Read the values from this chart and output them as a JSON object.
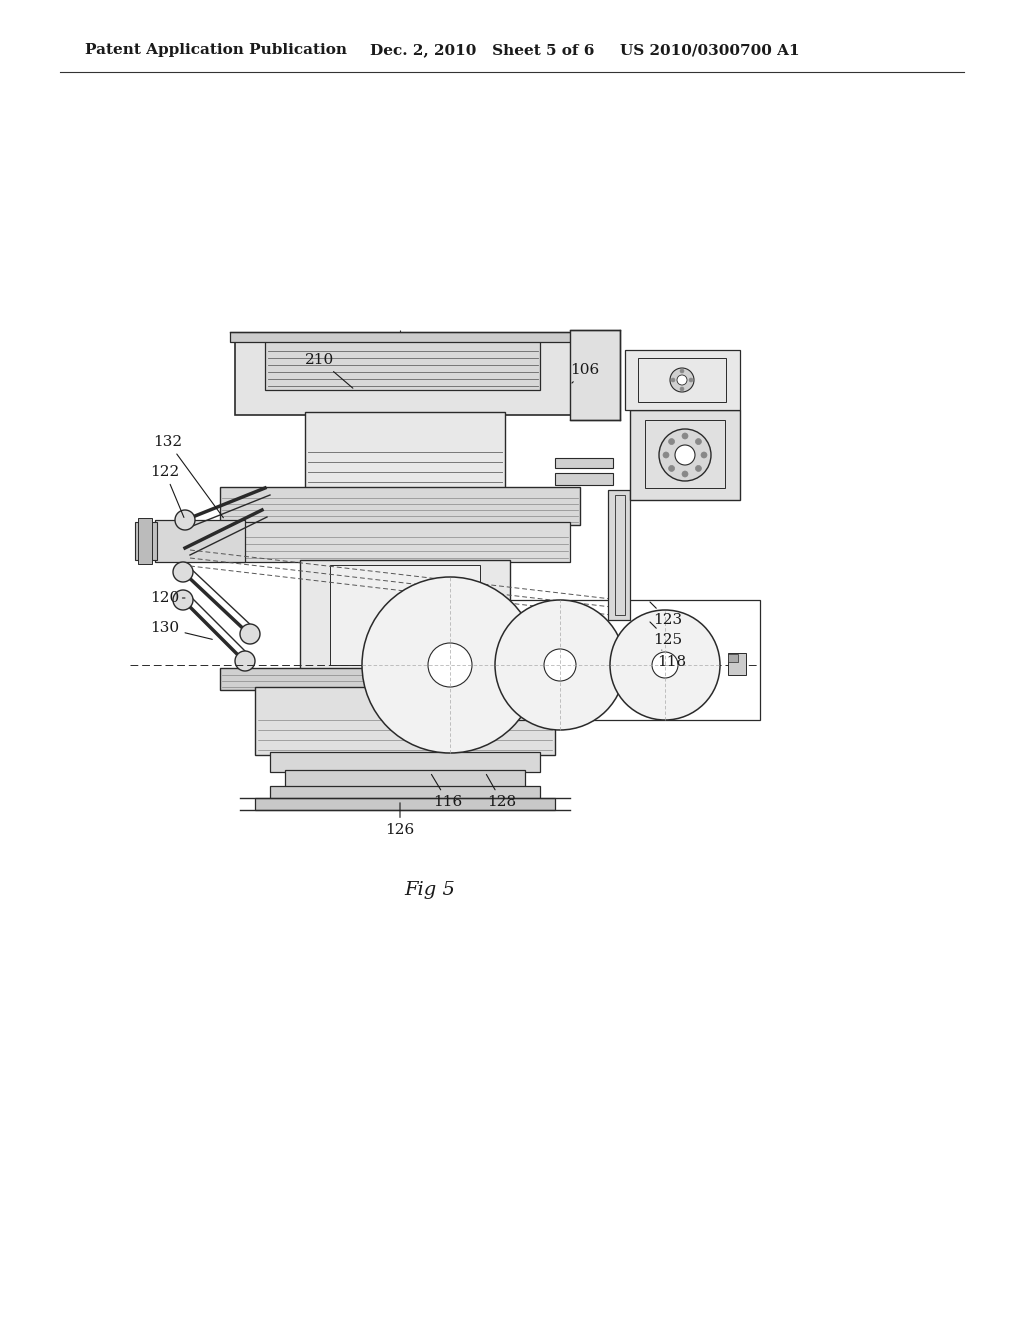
{
  "bg_color": "#ffffff",
  "header_left": "Patent Application Publication",
  "header_mid": "Dec. 2, 2010   Sheet 5 of 6",
  "header_right": "US 2010/0300700 A1",
  "fig_label": "Fig 5",
  "line_color": "#2a2a2a"
}
